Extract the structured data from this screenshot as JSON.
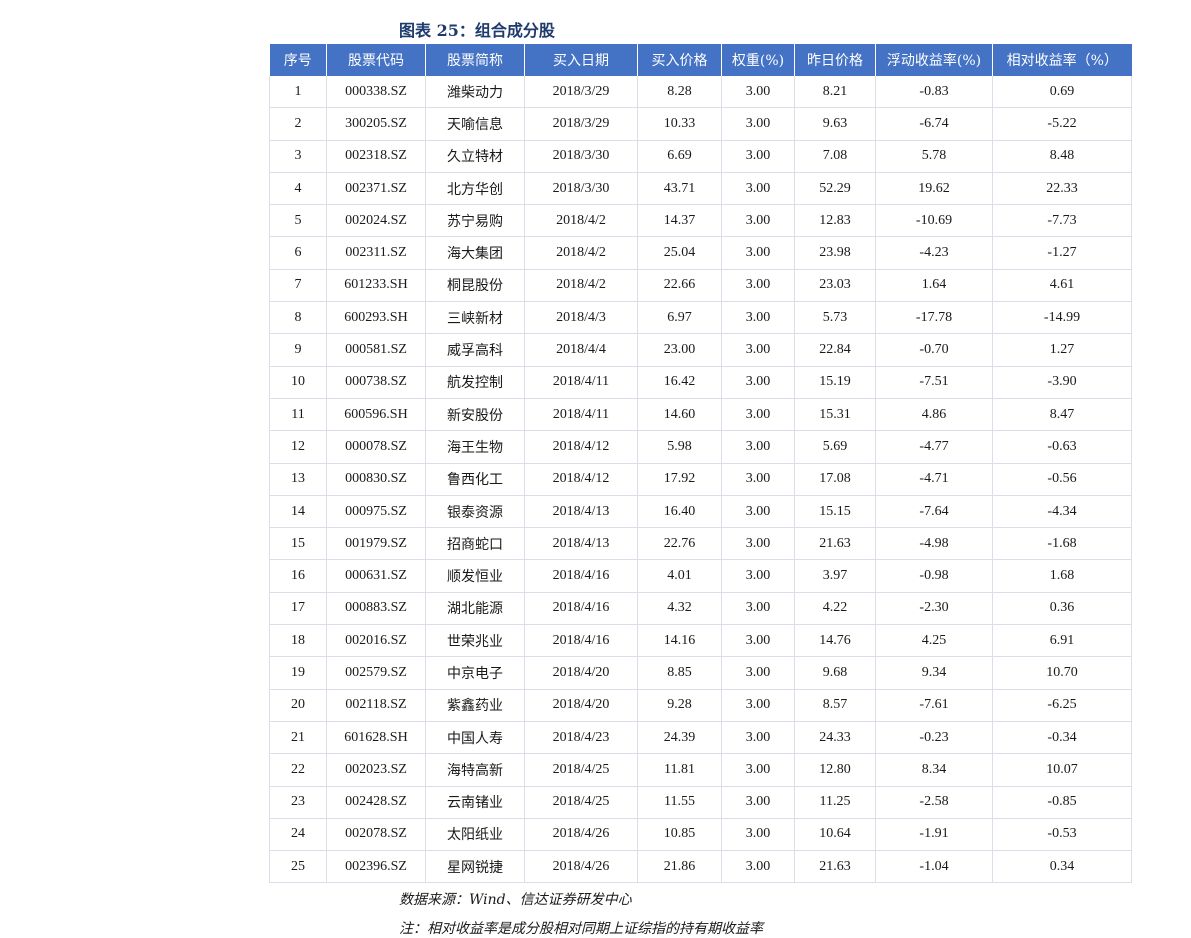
{
  "figure_title": "图表 25：组合成分股",
  "columns": [
    "序号",
    "股票代码",
    "股票简称",
    "买入日期",
    "买入价格",
    "权重(%)",
    "昨日价格",
    "浮动收益率(%)",
    "相对收益率（%）"
  ],
  "rows": [
    [
      "1",
      "000338.SZ",
      "潍柴动力",
      "2018/3/29",
      "8.28",
      "3.00",
      "8.21",
      "-0.83",
      "0.69"
    ],
    [
      "2",
      "300205.SZ",
      "天喻信息",
      "2018/3/29",
      "10.33",
      "3.00",
      "9.63",
      "-6.74",
      "-5.22"
    ],
    [
      "3",
      "002318.SZ",
      "久立特材",
      "2018/3/30",
      "6.69",
      "3.00",
      "7.08",
      "5.78",
      "8.48"
    ],
    [
      "4",
      "002371.SZ",
      "北方华创",
      "2018/3/30",
      "43.71",
      "3.00",
      "52.29",
      "19.62",
      "22.33"
    ],
    [
      "5",
      "002024.SZ",
      "苏宁易购",
      "2018/4/2",
      "14.37",
      "3.00",
      "12.83",
      "-10.69",
      "-7.73"
    ],
    [
      "6",
      "002311.SZ",
      "海大集团",
      "2018/4/2",
      "25.04",
      "3.00",
      "23.98",
      "-4.23",
      "-1.27"
    ],
    [
      "7",
      "601233.SH",
      "桐昆股份",
      "2018/4/2",
      "22.66",
      "3.00",
      "23.03",
      "1.64",
      "4.61"
    ],
    [
      "8",
      "600293.SH",
      "三峡新材",
      "2018/4/3",
      "6.97",
      "3.00",
      "5.73",
      "-17.78",
      "-14.99"
    ],
    [
      "9",
      "000581.SZ",
      "威孚高科",
      "2018/4/4",
      "23.00",
      "3.00",
      "22.84",
      "-0.70",
      "1.27"
    ],
    [
      "10",
      "000738.SZ",
      "航发控制",
      "2018/4/11",
      "16.42",
      "3.00",
      "15.19",
      "-7.51",
      "-3.90"
    ],
    [
      "11",
      "600596.SH",
      "新安股份",
      "2018/4/11",
      "14.60",
      "3.00",
      "15.31",
      "4.86",
      "8.47"
    ],
    [
      "12",
      "000078.SZ",
      "海王生物",
      "2018/4/12",
      "5.98",
      "3.00",
      "5.69",
      "-4.77",
      "-0.63"
    ],
    [
      "13",
      "000830.SZ",
      "鲁西化工",
      "2018/4/12",
      "17.92",
      "3.00",
      "17.08",
      "-4.71",
      "-0.56"
    ],
    [
      "14",
      "000975.SZ",
      "银泰资源",
      "2018/4/13",
      "16.40",
      "3.00",
      "15.15",
      "-7.64",
      "-4.34"
    ],
    [
      "15",
      "001979.SZ",
      "招商蛇口",
      "2018/4/13",
      "22.76",
      "3.00",
      "21.63",
      "-4.98",
      "-1.68"
    ],
    [
      "16",
      "000631.SZ",
      "顺发恒业",
      "2018/4/16",
      "4.01",
      "3.00",
      "3.97",
      "-0.98",
      "1.68"
    ],
    [
      "17",
      "000883.SZ",
      "湖北能源",
      "2018/4/16",
      "4.32",
      "3.00",
      "4.22",
      "-2.30",
      "0.36"
    ],
    [
      "18",
      "002016.SZ",
      "世荣兆业",
      "2018/4/16",
      "14.16",
      "3.00",
      "14.76",
      "4.25",
      "6.91"
    ],
    [
      "19",
      "002579.SZ",
      "中京电子",
      "2018/4/20",
      "8.85",
      "3.00",
      "9.68",
      "9.34",
      "10.70"
    ],
    [
      "20",
      "002118.SZ",
      "紫鑫药业",
      "2018/4/20",
      "9.28",
      "3.00",
      "8.57",
      "-7.61",
      "-6.25"
    ],
    [
      "21",
      "601628.SH",
      "中国人寿",
      "2018/4/23",
      "24.39",
      "3.00",
      "24.33",
      "-0.23",
      "-0.34"
    ],
    [
      "22",
      "002023.SZ",
      "海特高新",
      "2018/4/25",
      "11.81",
      "3.00",
      "12.80",
      "8.34",
      "10.07"
    ],
    [
      "23",
      "002428.SZ",
      "云南锗业",
      "2018/4/25",
      "11.55",
      "3.00",
      "11.25",
      "-2.58",
      "-0.85"
    ],
    [
      "24",
      "002078.SZ",
      "太阳纸业",
      "2018/4/26",
      "10.85",
      "3.00",
      "10.64",
      "-1.91",
      "-0.53"
    ],
    [
      "25",
      "002396.SZ",
      "星网锐捷",
      "2018/4/26",
      "21.86",
      "3.00",
      "21.63",
      "-1.04",
      "0.34"
    ]
  ],
  "source_text": "数据来源：Wind、信达证券研发中心",
  "note_text": "注：相对收益率是成分股相对同期上证综指的持有期收益率"
}
